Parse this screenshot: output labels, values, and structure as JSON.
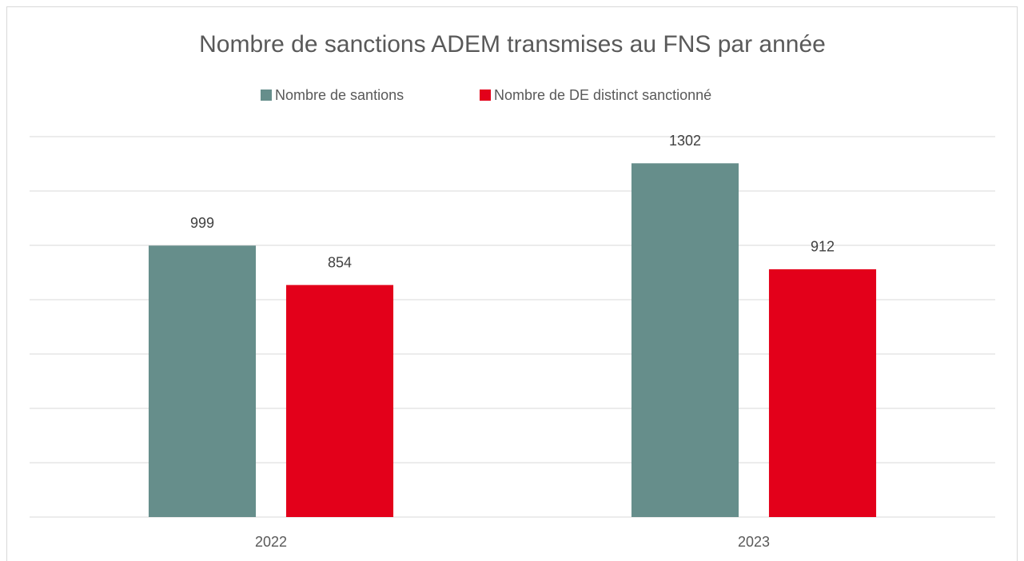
{
  "chart_data": {
    "type": "bar",
    "title": "Nombre de sanctions ADEM transmises au FNS par année",
    "categories": [
      "2022",
      "2023"
    ],
    "series": [
      {
        "name": "Nombre de santions",
        "color": "#668e8b",
        "values": [
          999,
          1302
        ]
      },
      {
        "name": "Nombre de DE distinct sanctionné",
        "color": "#e3001a",
        "values": [
          854,
          912
        ]
      }
    ],
    "ylim": [
      0,
      1400
    ],
    "yticks": [
      0,
      200,
      400,
      600,
      800,
      1000,
      1200,
      1400
    ],
    "grid": true,
    "legend": "top"
  }
}
